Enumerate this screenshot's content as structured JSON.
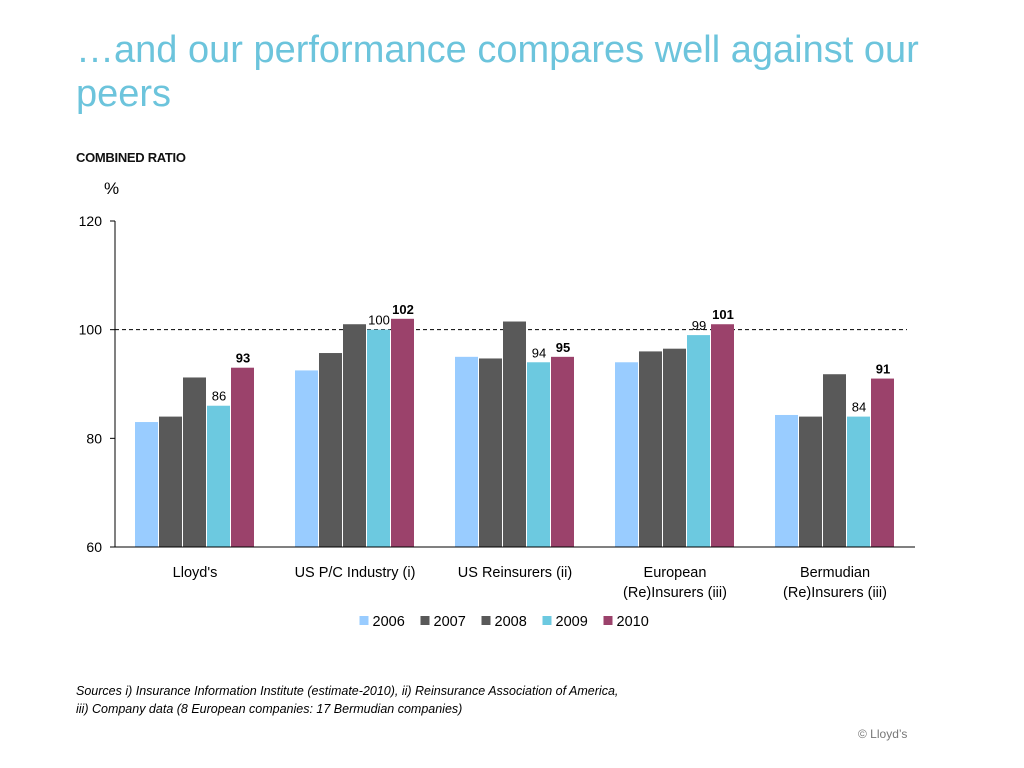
{
  "title": "…and our performance compares well against our peers",
  "section_label": "COMBINED RATIO",
  "sources": {
    "line1": "Sources i) Insurance Information Institute (estimate-2010), ii) Reinsurance Association of America,",
    "line2": "iii) Company data (8 European companies: 17 Bermudian companies)"
  },
  "copyright": "© Lloyd’s",
  "chart_data": {
    "type": "bar",
    "unit_label": "%",
    "categories": [
      [
        "Lloyd's"
      ],
      [
        "US P/C Industry (i)"
      ],
      [
        "US Reinsurers (ii)"
      ],
      [
        "European",
        "(Re)Insurers (iii)"
      ],
      [
        "Bermudian",
        "(Re)Insurers (iii)"
      ]
    ],
    "series": [
      {
        "name": "2006",
        "color": "#99ccff",
        "values": [
          83,
          92.5,
          95,
          94,
          84.3
        ]
      },
      {
        "name": "2007",
        "color": "#595959",
        "values": [
          84,
          95.7,
          94.7,
          96,
          84
        ]
      },
      {
        "name": "2008",
        "color": "#595959",
        "values": [
          91.2,
          101,
          101.5,
          96.5,
          91.8
        ]
      },
      {
        "name": "2009",
        "color": "#6cc9e0",
        "values": [
          86,
          100,
          94,
          99,
          84
        ]
      },
      {
        "name": "2010",
        "color": "#9b426b",
        "values": [
          93,
          102,
          95,
          101,
          91
        ]
      }
    ],
    "data_labels": [
      {
        "category": 0,
        "series": 3,
        "text": "86",
        "bold": false
      },
      {
        "category": 0,
        "series": 4,
        "text": "93",
        "bold": true
      },
      {
        "category": 1,
        "series": 3,
        "text": "100",
        "bold": false
      },
      {
        "category": 1,
        "series": 4,
        "text": "102",
        "bold": true
      },
      {
        "category": 2,
        "series": 3,
        "text": "94",
        "bold": false
      },
      {
        "category": 2,
        "series": 4,
        "text": "95",
        "bold": true
      },
      {
        "category": 3,
        "series": 3,
        "text": "99",
        "bold": false
      },
      {
        "category": 3,
        "series": 4,
        "text": "101",
        "bold": true
      },
      {
        "category": 4,
        "series": 3,
        "text": "84",
        "bold": false
      },
      {
        "category": 4,
        "series": 4,
        "text": "91",
        "bold": true
      }
    ],
    "yticks": [
      60,
      80,
      100,
      120
    ],
    "ylim": [
      60,
      120
    ],
    "reference_line": 100,
    "legend_position": "bottom"
  }
}
